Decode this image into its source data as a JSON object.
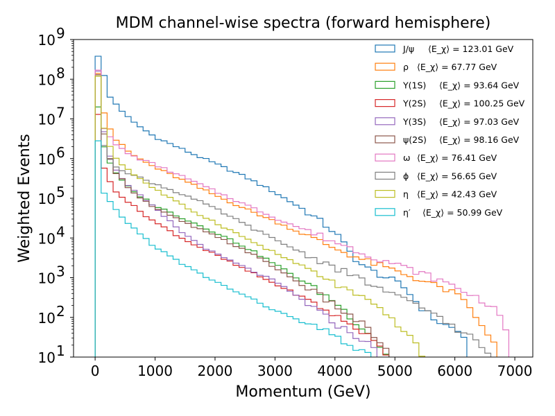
{
  "chart_data": {
    "type": "step-histogram",
    "title": "MDM channel-wise spectra (forward hemisphere)",
    "xlabel": "Momentum (GeV)",
    "ylabel": "Weighted Events",
    "xlim": [
      -360,
      7300
    ],
    "ylim": [
      10,
      1000000000
    ],
    "yscale": "log",
    "bin_width": 100,
    "xticks": [
      {
        "value": 0,
        "label": "0"
      },
      {
        "value": 1000,
        "label": "1000"
      },
      {
        "value": 2000,
        "label": "2000"
      },
      {
        "value": 3000,
        "label": "3000"
      },
      {
        "value": 4000,
        "label": "4000"
      },
      {
        "value": 5000,
        "label": "5000"
      },
      {
        "value": 6000,
        "label": "6000"
      },
      {
        "value": 7000,
        "label": "7000"
      }
    ],
    "yticks": [
      {
        "value": 10,
        "base": "10",
        "exp": "1"
      },
      {
        "value": 100,
        "base": "10",
        "exp": "2"
      },
      {
        "value": 1000,
        "base": "10",
        "exp": "3"
      },
      {
        "value": 10000,
        "base": "10",
        "exp": "4"
      },
      {
        "value": 100000,
        "base": "10",
        "exp": "5"
      },
      {
        "value": 1000000,
        "base": "10",
        "exp": "6"
      },
      {
        "value": 10000000,
        "base": "10",
        "exp": "7"
      },
      {
        "value": 100000000,
        "base": "10",
        "exp": "8"
      },
      {
        "value": 1000000000,
        "base": "10",
        "exp": "9"
      }
    ],
    "legend_position": "top-right",
    "series": [
      {
        "name": "J/ψ",
        "mean_label": "⟨E_χ⟩ = 123.01 GeV",
        "color": "#1f77b4",
        "peak": 380000000,
        "anchors": [
          [
            150,
            120000000
          ],
          [
            250,
            35000000
          ],
          [
            600,
            9000000
          ],
          [
            1000,
            3500000
          ],
          [
            1500,
            1600000
          ],
          [
            2000,
            750000
          ],
          [
            2500,
            350000
          ],
          [
            3000,
            140000
          ],
          [
            3500,
            50000
          ],
          [
            4000,
            14000
          ],
          [
            4300,
            3500
          ],
          [
            4500,
            1800
          ],
          [
            4800,
            1100
          ],
          [
            5000,
            800
          ],
          [
            5200,
            500
          ],
          [
            5400,
            200
          ],
          [
            5700,
            80
          ],
          [
            6000,
            50
          ],
          [
            6200,
            30
          ]
        ],
        "end": 6200
      },
      {
        "name": "ρ",
        "mean_label": "⟨E_χ⟩ = 67.77 GeV",
        "color": "#ff7f0e",
        "peak": 140000000,
        "anchors": [
          [
            150,
            15000000
          ],
          [
            300,
            3500000
          ],
          [
            600,
            1300000
          ],
          [
            1000,
            600000
          ],
          [
            1500,
            270000
          ],
          [
            2000,
            120000
          ],
          [
            2500,
            55000
          ],
          [
            3000,
            26000
          ],
          [
            3500,
            12000
          ],
          [
            4000,
            5500
          ],
          [
            4500,
            2700
          ],
          [
            5000,
            1500
          ],
          [
            5500,
            800
          ],
          [
            6000,
            400
          ],
          [
            6300,
            150
          ],
          [
            6500,
            40
          ],
          [
            6700,
            20
          ]
        ],
        "end": 6700
      },
      {
        "name": "Υ(1S)",
        "mean_label": "⟨E_χ⟩ = 93.64 GeV",
        "color": "#2ca02c",
        "peak": 20000000,
        "anchors": [
          [
            150,
            2000000
          ],
          [
            300,
            500000
          ],
          [
            600,
            160000
          ],
          [
            1000,
            65000
          ],
          [
            1500,
            30000
          ],
          [
            2000,
            14000
          ],
          [
            2500,
            6000
          ],
          [
            3000,
            2200
          ],
          [
            3500,
            750
          ],
          [
            4000,
            250
          ],
          [
            4300,
            90
          ],
          [
            4600,
            35
          ],
          [
            4800,
            15
          ],
          [
            4900,
            10
          ]
        ],
        "end": 4900
      },
      {
        "name": "Υ(2S)",
        "mean_label": "⟨E_χ⟩ = 100.25 GeV",
        "color": "#d62728",
        "peak": 13000000,
        "anchors": [
          [
            150,
            550000
          ],
          [
            300,
            180000
          ],
          [
            600,
            70000
          ],
          [
            1000,
            25000
          ],
          [
            1500,
            9000
          ],
          [
            2000,
            3800
          ],
          [
            2500,
            1600
          ],
          [
            3000,
            700
          ],
          [
            3500,
            300
          ],
          [
            4000,
            110
          ],
          [
            4500,
            40
          ],
          [
            4800,
            15
          ],
          [
            4900,
            10
          ]
        ],
        "end": 4900
      },
      {
        "name": "Υ(3S)",
        "mean_label": "⟨E_χ⟩ = 97.03 GeV",
        "color": "#9467bd",
        "peak": 160000000,
        "anchors": [
          [
            150,
            5000000
          ],
          [
            300,
            600000
          ],
          [
            600,
            180000
          ],
          [
            1000,
            55000
          ],
          [
            1500,
            12000
          ],
          [
            2000,
            4000
          ],
          [
            2500,
            1800
          ],
          [
            3000,
            800
          ],
          [
            3500,
            250
          ],
          [
            4000,
            70
          ],
          [
            4500,
            25
          ],
          [
            4800,
            10
          ]
        ],
        "end": 4800
      },
      {
        "name": "ψ(2S)",
        "mean_label": "⟨E_χ⟩ = 98.16 GeV",
        "color": "#8c564b",
        "peak": 130000000,
        "anchors": [
          [
            150,
            4000000
          ],
          [
            300,
            550000
          ],
          [
            600,
            160000
          ],
          [
            1000,
            55000
          ],
          [
            1500,
            24000
          ],
          [
            2000,
            11000
          ],
          [
            2500,
            5000
          ],
          [
            3000,
            1800
          ],
          [
            3500,
            600
          ],
          [
            4000,
            200
          ],
          [
            4500,
            60
          ],
          [
            4800,
            20
          ],
          [
            4900,
            10
          ]
        ],
        "end": 4900
      },
      {
        "name": "ω",
        "mean_label": "⟨E_χ⟩ = 76.41 GeV",
        "color": "#e377c2",
        "peak": 170000000,
        "anchors": [
          [
            150,
            6000000
          ],
          [
            300,
            2500000
          ],
          [
            600,
            1200000
          ],
          [
            1000,
            700000
          ],
          [
            1500,
            330000
          ],
          [
            2000,
            150000
          ],
          [
            2500,
            70000
          ],
          [
            3000,
            32000
          ],
          [
            3500,
            16000
          ],
          [
            4000,
            8000
          ],
          [
            4500,
            4000
          ],
          [
            5000,
            2200
          ],
          [
            5500,
            1200
          ],
          [
            6000,
            600
          ],
          [
            6500,
            250
          ],
          [
            6800,
            100
          ],
          [
            6900,
            30
          ]
        ],
        "end": 6900
      },
      {
        "name": "ϕ",
        "mean_label": "⟨E_χ⟩ = 56.65 GeV",
        "color": "#7f7f7f",
        "peak": 120000000,
        "anchors": [
          [
            150,
            2000000
          ],
          [
            300,
            700000
          ],
          [
            600,
            400000
          ],
          [
            1000,
            230000
          ],
          [
            1500,
            120000
          ],
          [
            2000,
            55000
          ],
          [
            2500,
            22000
          ],
          [
            3000,
            9000
          ],
          [
            3500,
            4000
          ],
          [
            4000,
            1800
          ],
          [
            4500,
            800
          ],
          [
            5000,
            350
          ],
          [
            5500,
            160
          ],
          [
            5800,
            100
          ],
          [
            6000,
            50
          ],
          [
            6300,
            30
          ],
          [
            6500,
            15
          ],
          [
            6600,
            10
          ]
        ],
        "end": 6600
      },
      {
        "name": "η",
        "mean_label": "⟨E_χ⟩ = 42.43 GeV",
        "color": "#bcbd22",
        "peak": 120000000,
        "anchors": [
          [
            150,
            6000000
          ],
          [
            300,
            1200000
          ],
          [
            600,
            450000
          ],
          [
            1000,
            170000
          ],
          [
            1500,
            60000
          ],
          [
            2000,
            25000
          ],
          [
            2500,
            10000
          ],
          [
            3000,
            4200
          ],
          [
            3500,
            1800
          ],
          [
            4000,
            700
          ],
          [
            4500,
            280
          ],
          [
            5000,
            80
          ],
          [
            5200,
            40
          ],
          [
            5400,
            15
          ],
          [
            5500,
            10
          ]
        ],
        "end": 5500
      },
      {
        "name": "η′",
        "mean_label": "⟨E_χ⟩ = 50.99 GeV",
        "color": "#17becf",
        "peak": 2800000,
        "anchors": [
          [
            150,
            130000
          ],
          [
            300,
            60000
          ],
          [
            600,
            20000
          ],
          [
            1000,
            6000
          ],
          [
            1500,
            2000
          ],
          [
            2000,
            800
          ],
          [
            2500,
            350
          ],
          [
            3000,
            150
          ],
          [
            3500,
            70
          ],
          [
            4000,
            35
          ],
          [
            4300,
            18
          ],
          [
            4500,
            12
          ],
          [
            4600,
            10
          ]
        ],
        "end": 4600
      }
    ]
  }
}
